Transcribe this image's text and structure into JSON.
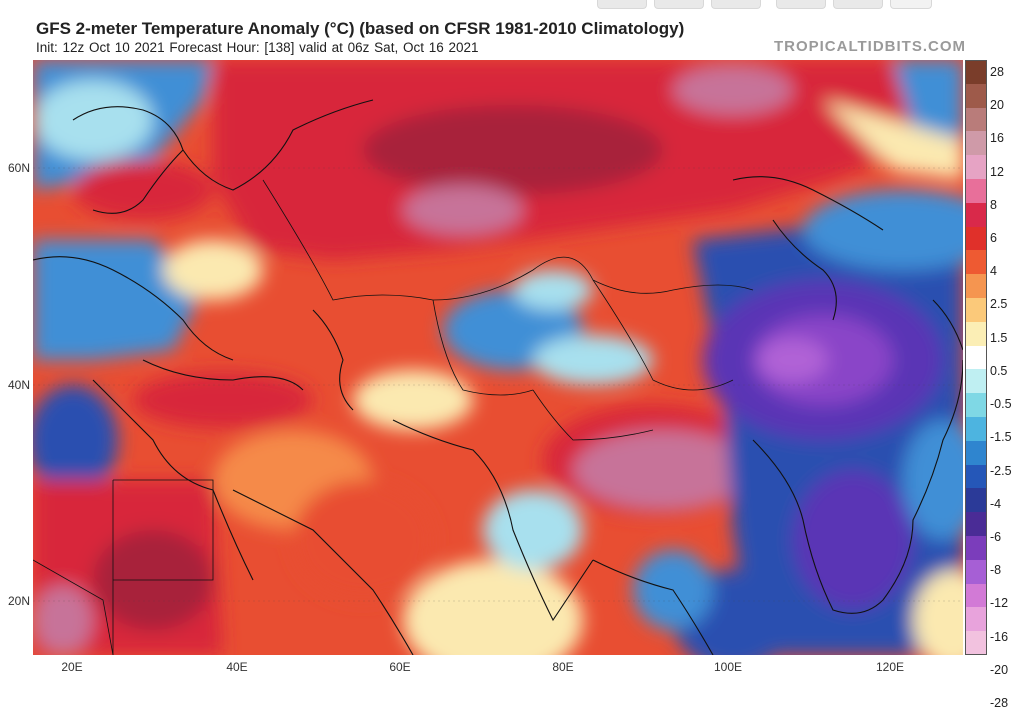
{
  "header": {
    "title": "GFS 2-meter Temperature Anomaly (°C) (based on CFSR 1981-2010 Climatology)",
    "subtitle": "Init: 12z Oct 10 2021   Forecast Hour: [138]   valid at 06z Sat, Oct 16 2021",
    "watermark": "TROPICALTIDBITS.COM"
  },
  "axes": {
    "lat_labels": [
      "60N",
      "40N",
      "20N"
    ],
    "lon_labels": [
      "20E",
      "40E",
      "60E",
      "80E",
      "100E",
      "120E"
    ]
  },
  "colorbar": {
    "labels": [
      "28",
      "20",
      "16",
      "12",
      "8",
      "6",
      "4",
      "2.5",
      "1.5",
      "0.5",
      "-0.5",
      "-1.5",
      "-2.5",
      "-4",
      "-6",
      "-8",
      "-12",
      "-16",
      "-20",
      "-28"
    ],
    "colors": [
      "#7a3d2a",
      "#9e5a4a",
      "#b97c7a",
      "#cf9aa8",
      "#e6a3c4",
      "#e86f9a",
      "#d9294a",
      "#e0302a",
      "#ee5a32",
      "#f59550",
      "#fbc97a",
      "#fbeeb5",
      "#ffffff",
      "#bfeff2",
      "#7fd8e5",
      "#4db4e0",
      "#2f85cf",
      "#2557b8",
      "#2b3a98",
      "#4a2c96",
      "#7b3dbb",
      "#a65fd5",
      "#d27ad6",
      "#e8a3dc",
      "#f2c2df"
    ]
  },
  "map": {
    "region": "Eurasia",
    "colors": {
      "warm_deep": "#a8203a",
      "warm": "#d8283a",
      "warm_mid": "#e84e32",
      "warm_light": "#f58a4a",
      "neutral": "#fbe9b0",
      "cool_light": "#a8e0ee",
      "cool": "#3f8fd6",
      "cold": "#2a4fb0",
      "cold_deep": "#5a35b5",
      "purple": "#8a44c8",
      "magenta": "#b062d6",
      "pink": "#c77399"
    }
  }
}
